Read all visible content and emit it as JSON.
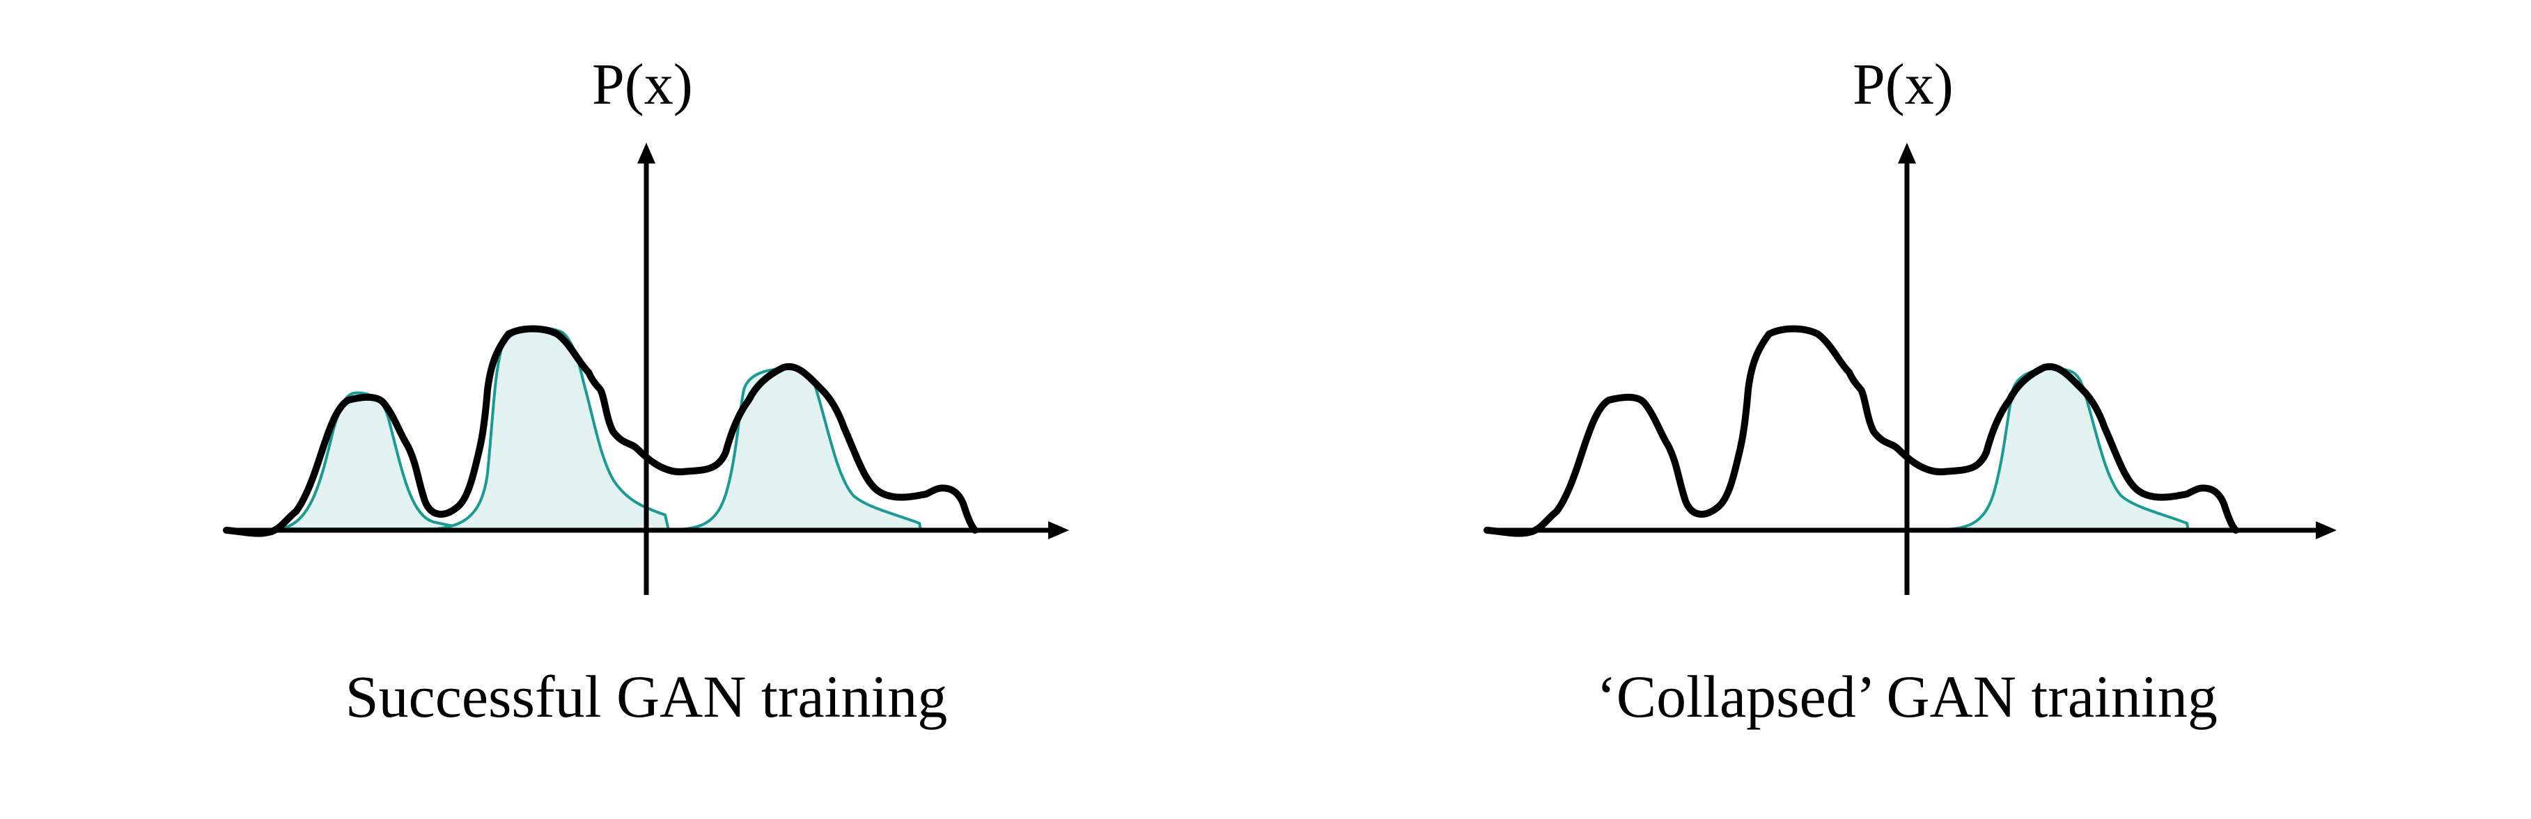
{
  "colors": {
    "target": "#000000",
    "model": "#1a9a94",
    "fill": "#e2f2f0"
  },
  "panels": [
    {
      "y_axis_label": "P(x)",
      "caption": "Successful GAN training"
    },
    {
      "y_axis_label": "P(x)",
      "caption": "‘Collapsed’ GAN training"
    }
  ]
}
